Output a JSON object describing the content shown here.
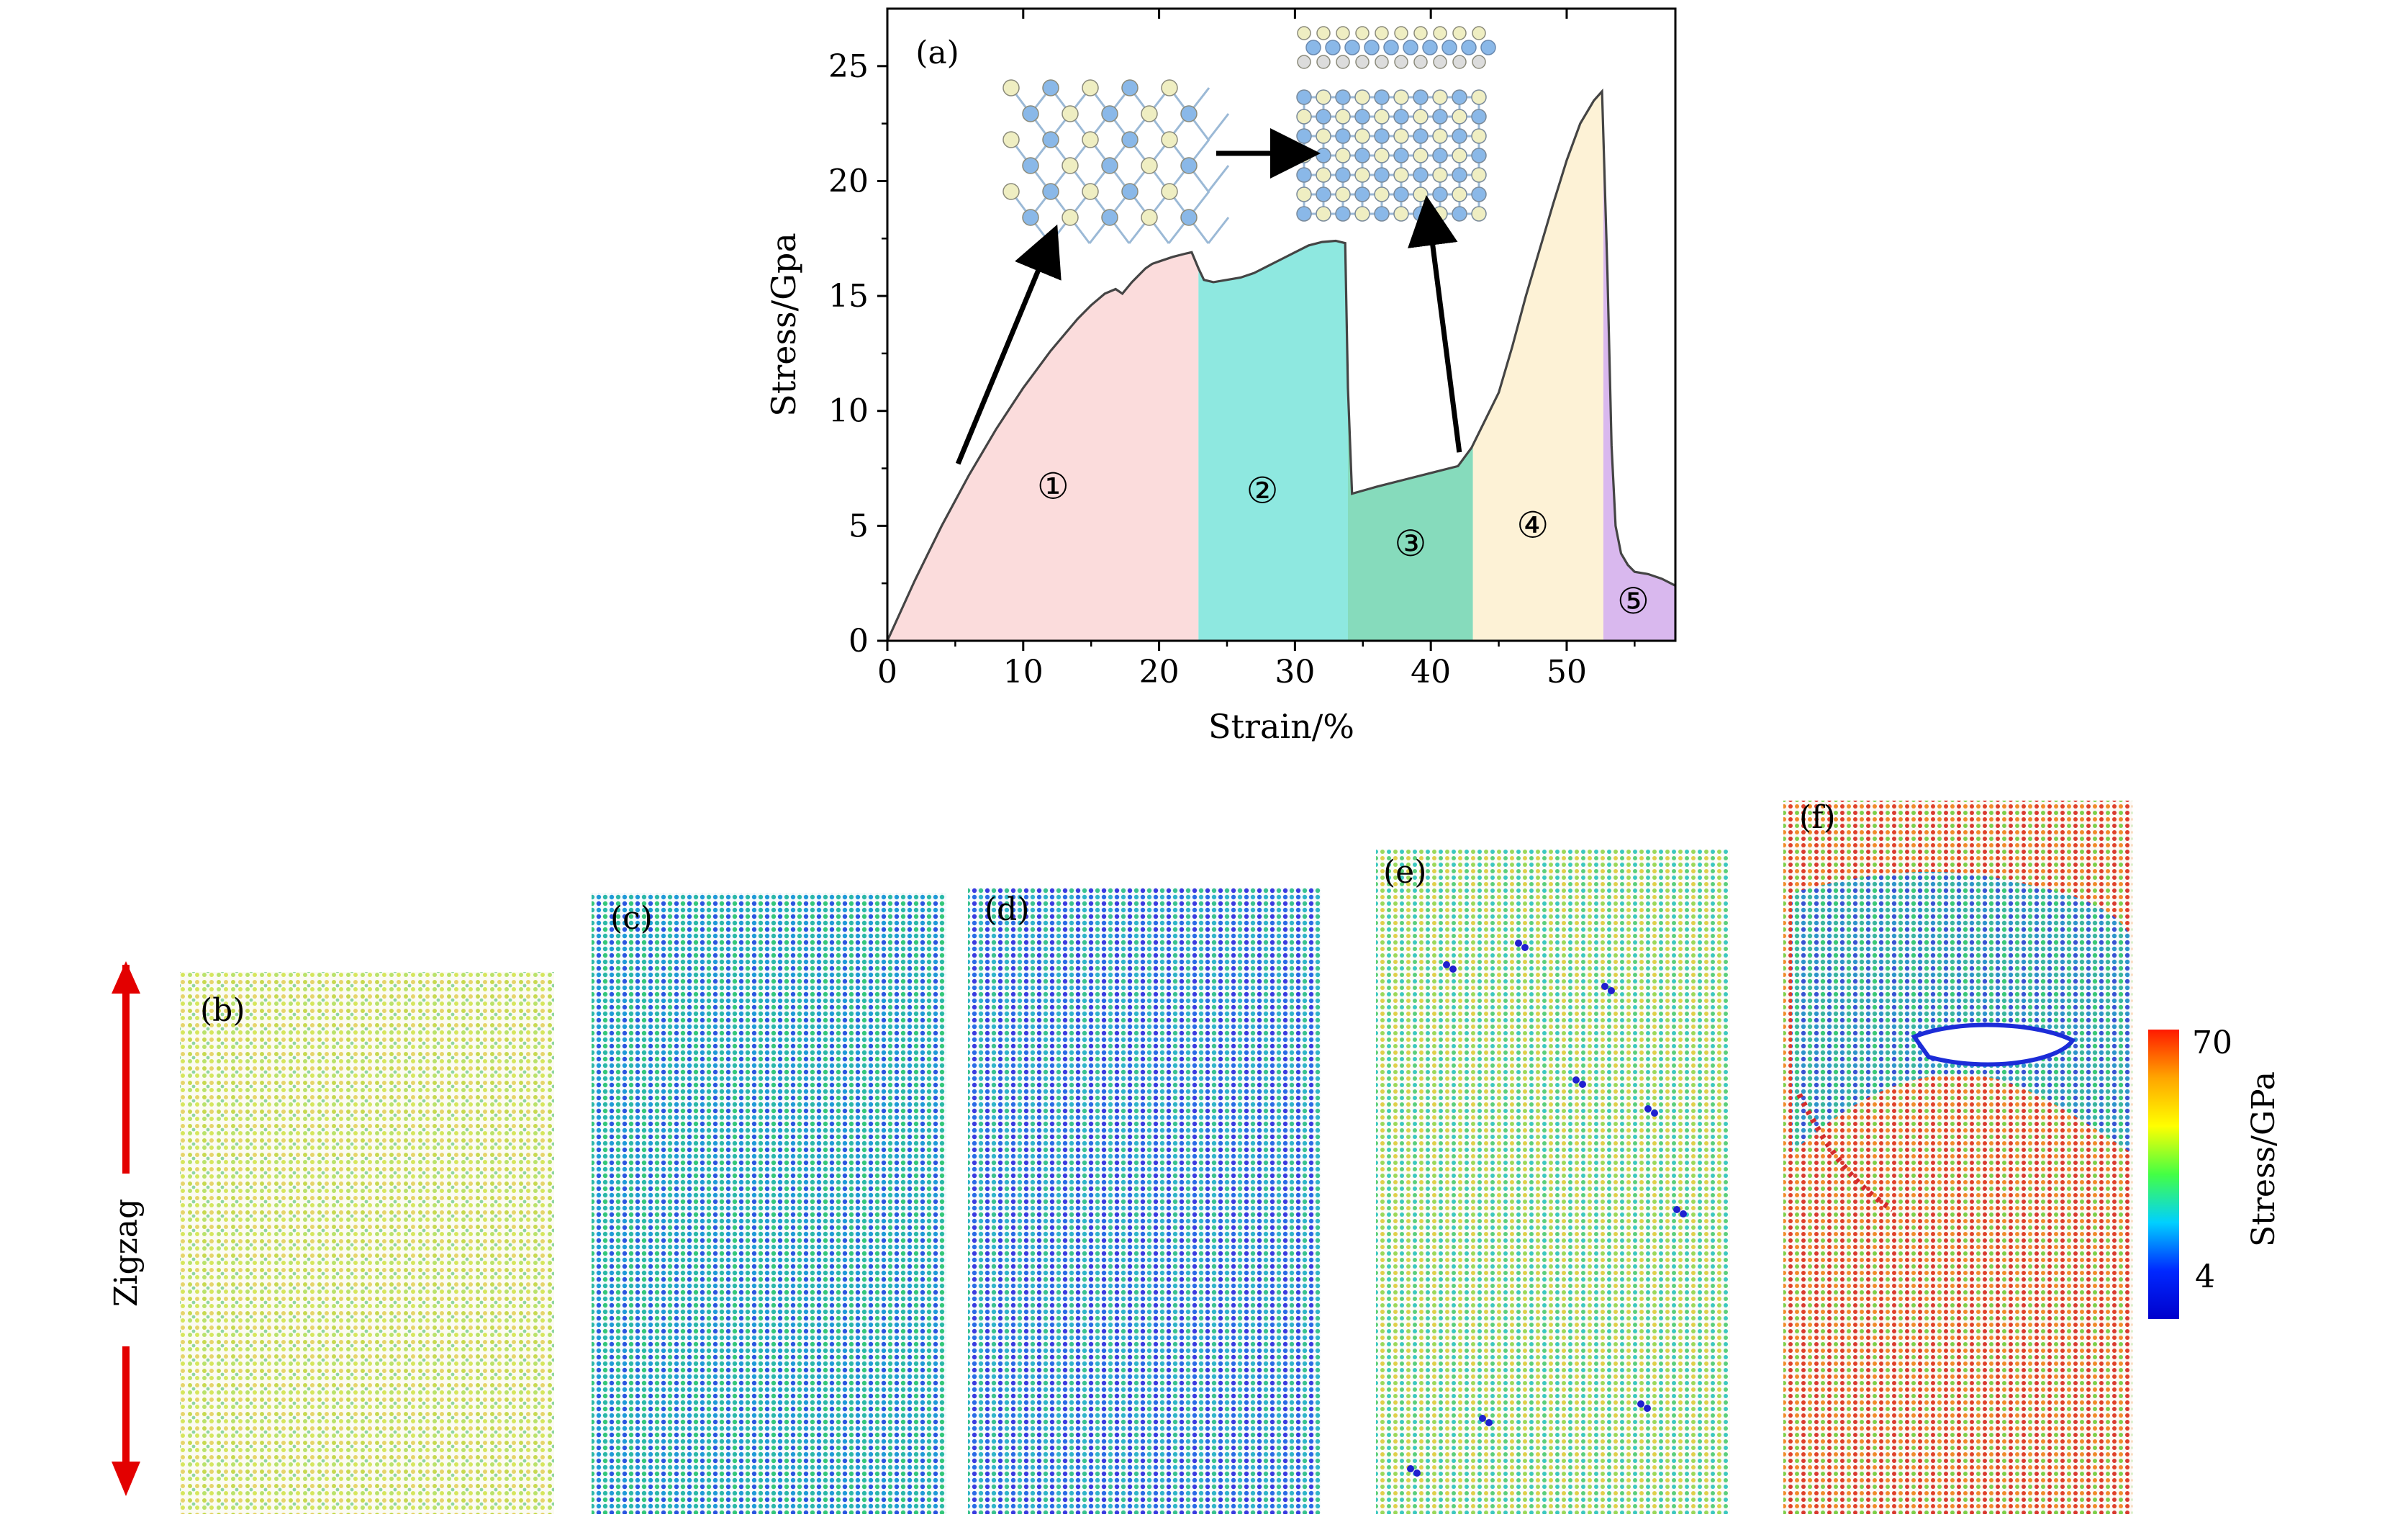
{
  "chart_data": [
    {
      "panel": "(a)",
      "type": "area",
      "xlabel": "Strain/%",
      "ylabel": "Stress/Gpa",
      "xlim": [
        0,
        58
      ],
      "ylim": [
        0,
        27.5
      ],
      "xticks": [
        0,
        10,
        20,
        30,
        40,
        50
      ],
      "yticks": [
        0,
        5,
        10,
        15,
        20,
        25
      ],
      "grid": false,
      "curve": {
        "x": [
          0,
          1,
          2,
          3,
          4,
          5,
          6,
          7,
          8,
          9,
          10,
          11,
          12,
          13,
          14,
          15,
          16,
          16.8,
          17.3,
          18,
          19,
          19.5,
          20,
          21,
          22,
          22.4,
          22.9,
          23.3,
          24,
          25,
          26,
          27,
          28,
          29,
          30,
          31,
          32,
          33,
          33.7,
          33.9,
          34.2,
          34.8,
          36,
          38,
          40,
          42,
          43,
          44,
          45,
          46,
          47,
          48,
          49,
          50,
          51,
          52,
          52.6,
          53.0,
          53.3,
          53.6,
          54,
          54.5,
          55,
          56,
          57,
          58
        ],
        "y": [
          0,
          1.3,
          2.6,
          3.8,
          5.0,
          6.1,
          7.2,
          8.2,
          9.2,
          10.1,
          11.0,
          11.8,
          12.6,
          13.3,
          14.0,
          14.6,
          15.1,
          15.3,
          15.1,
          15.6,
          16.2,
          16.4,
          16.5,
          16.7,
          16.85,
          16.9,
          16.2,
          15.7,
          15.6,
          15.7,
          15.8,
          16.0,
          16.3,
          16.6,
          16.9,
          17.2,
          17.35,
          17.4,
          17.3,
          11.0,
          6.4,
          6.5,
          6.7,
          7.0,
          7.3,
          7.6,
          8.4,
          9.6,
          10.8,
          12.8,
          15.0,
          17.0,
          19.0,
          20.9,
          22.5,
          23.5,
          23.9,
          16.0,
          8.5,
          5.0,
          3.8,
          3.3,
          3.0,
          2.9,
          2.7,
          2.4
        ]
      },
      "regions": [
        {
          "label": "①",
          "x_from": 0,
          "x_to": 22.9,
          "color": "#fbdcdc",
          "label_at": [
            12.2,
            6.6
          ]
        },
        {
          "label": "②",
          "x_from": 22.9,
          "x_to": 33.9,
          "color": "#8ee8e0",
          "label_at": [
            27.6,
            6.4
          ]
        },
        {
          "label": "③",
          "x_from": 33.9,
          "x_to": 43.1,
          "color": "#86dbbc",
          "label_at": [
            38.5,
            4.1
          ]
        },
        {
          "label": "④",
          "x_from": 43.1,
          "x_to": 52.7,
          "color": "#fdf2d6",
          "label_at": [
            47.5,
            4.9
          ]
        },
        {
          "label": "⑤",
          "x_from": 52.7,
          "x_to": 58,
          "color": "#d9b8ee",
          "label_at": [
            54.9,
            1.6
          ]
        }
      ],
      "annotations": [
        {
          "text": "(a)",
          "at": [
            4.2,
            25.5
          ]
        },
        {
          "type": "arrow",
          "from": [
            5.2,
            7.7
          ],
          "to": [
            11.8,
            17.1
          ]
        },
        {
          "type": "arrow",
          "from": [
            42.1,
            8.2
          ],
          "to": [
            39.9,
            18.3
          ]
        }
      ]
    },
    {
      "panel": "(b)-(f)",
      "type": "heatmap",
      "panels": [
        {
          "label": "(b)"
        },
        {
          "label": "(c)"
        },
        {
          "label": "(d)"
        },
        {
          "label": "(e)"
        },
        {
          "label": "(f)"
        }
      ],
      "direction_label": "Zigzag",
      "colorbar": {
        "label": "Stress/GPa",
        "max_label": "70",
        "min_label": "4",
        "colors": [
          "#ff1a00",
          "#ffa500",
          "#ffff00",
          "#44ff44",
          "#00d0ff",
          "#0028ff",
          "#0000cc"
        ]
      },
      "colors": {
        "arrow": "#e30000"
      }
    }
  ]
}
